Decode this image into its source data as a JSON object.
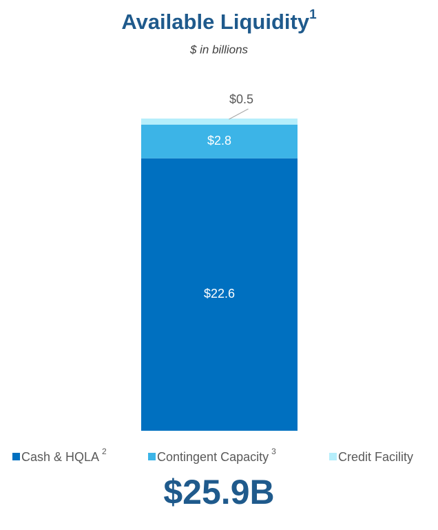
{
  "chart_data": {
    "type": "stacked_bar",
    "title": "Available Liquidity",
    "title_note": "1",
    "subtitle": "$ in billions",
    "series": [
      {
        "name": "Cash & HQLA",
        "note": "2",
        "color": "#0070c0",
        "values": [
          22.6
        ],
        "value_labels": [
          "$22.6"
        ]
      },
      {
        "name": "Contingent Capacity",
        "note": "3",
        "color": "#3cb4e7",
        "values": [
          2.8
        ],
        "value_labels": [
          "$2.8"
        ]
      },
      {
        "name": "Credit Facility",
        "color": "#b5eefb",
        "values": [
          0.5
        ],
        "value_labels": [
          "$0.5"
        ]
      }
    ],
    "total_label": "$25.9B"
  }
}
